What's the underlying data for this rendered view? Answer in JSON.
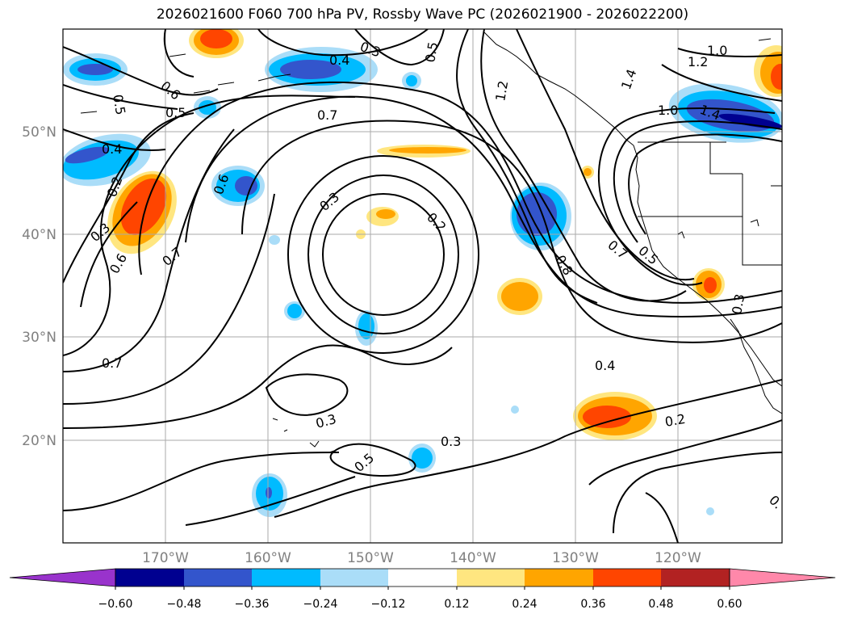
{
  "title": "2026021600 F060 700 hPa PV, Rossby Wave PC (2026021900 - 2026022200)",
  "lat_labels": [
    "50°N",
    "40°N",
    "30°N",
    "20°N"
  ],
  "lon_labels": [
    "170°W",
    "160°W",
    "150°W",
    "140°W",
    "130°W",
    "120°W"
  ],
  "colorbar": {
    "ticks": [
      "−0.60",
      "−0.48",
      "−0.36",
      "−0.24",
      "−0.12",
      "0.12",
      "0.24",
      "0.36",
      "0.48",
      "0.60"
    ],
    "colors": [
      "#9933cc",
      "#000090",
      "#3355cc",
      "#00bbff",
      "#aaddf8",
      "#ffffff",
      "#ffe680",
      "#ffa500",
      "#ff4500",
      "#b22222",
      "#ff88aa"
    ]
  },
  "contour_labels": [
    {
      "text": "0.6"
    },
    {
      "text": "0.5"
    },
    {
      "text": "0.5"
    },
    {
      "text": "0.4"
    },
    {
      "text": "0.2"
    },
    {
      "text": "0.3"
    },
    {
      "text": "0.6"
    },
    {
      "text": "0.7"
    },
    {
      "text": "0.7"
    },
    {
      "text": "0.3"
    },
    {
      "text": "0.4"
    },
    {
      "text": "0.5"
    },
    {
      "text": "0.7"
    },
    {
      "text": "0.6"
    },
    {
      "text": "0.3"
    },
    {
      "text": "0.2"
    },
    {
      "text": "1.2"
    },
    {
      "text": "1.0"
    },
    {
      "text": "1.2"
    },
    {
      "text": "1.4"
    },
    {
      "text": "1.0"
    },
    {
      "text": "1.4"
    },
    {
      "text": "0.8"
    },
    {
      "text": "0.7"
    },
    {
      "text": "0.5"
    },
    {
      "text": "0.3"
    },
    {
      "text": "0.4"
    },
    {
      "text": "0.3"
    },
    {
      "text": "0.5"
    },
    {
      "text": "0.3"
    },
    {
      "text": "0.2"
    },
    {
      "text": "0."
    }
  ]
}
